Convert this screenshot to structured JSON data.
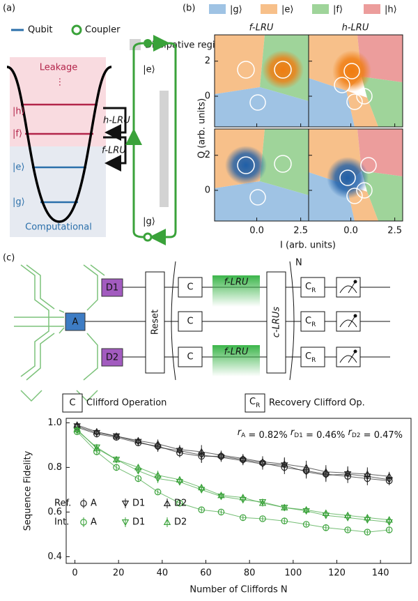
{
  "panel_a": {
    "label": "(a)",
    "legend": {
      "qubit": "Qubit",
      "coupler": "Coupler",
      "dissipative": "Dissipative regime"
    },
    "regions": {
      "leakage": "Leakage",
      "computational": "Computational"
    },
    "levels": [
      "|h⟩",
      "|f⟩",
      "|e⟩",
      "|g⟩"
    ],
    "lru": [
      "h-LRU",
      "f-LRU"
    ],
    "coupler_states": [
      "|e⟩",
      "|g⟩"
    ]
  },
  "panel_b": {
    "label": "(b)",
    "legend": [
      {
        "name": "|g⟩",
        "color": "#9fc3e4"
      },
      {
        "name": "|e⟩",
        "color": "#f7c08a"
      },
      {
        "name": "|f⟩",
        "color": "#9fd49a"
      },
      {
        "name": "|h⟩",
        "color": "#ec9d9c"
      }
    ],
    "titles": [
      "f-LRU",
      "h-LRU"
    ],
    "xlabel": "I (arb. units)",
    "ylabel": "Q (arb. units)",
    "xlim": [
      -2.4,
      2.95
    ],
    "ylim": [
      -1.75,
      3.5
    ],
    "xticks": [
      {
        "value": 0,
        "label": "0.0"
      },
      2.5
    ],
    "yticks": [
      0,
      2
    ]
  },
  "panel_c": {
    "label": "(c)",
    "qubits": [
      "D1",
      "A",
      "D2"
    ],
    "reset": "Reset",
    "clifford": "C",
    "lru": "f-LRU",
    "c_lrus": "c-LRUs",
    "repeat": "N",
    "recovery": {
      "main": "C",
      "sub": "R"
    },
    "legend": {
      "clifford": "Clifford Operation",
      "recovery": "Recovery Clifford Op."
    }
  },
  "chart_data": {
    "type": "line",
    "xlabel": "Number of Cliffords N",
    "ylabel": "Sequence Fidelity",
    "xlim": [
      -4,
      154
    ],
    "ylim": [
      0.37,
      1.02
    ],
    "xticks": [
      0,
      20,
      40,
      60,
      80,
      100,
      120,
      140
    ],
    "yticks": [
      0.4,
      0.6,
      0.8,
      {
        "value": 1,
        "label": "1.0"
      }
    ],
    "groups": [
      "Ref.",
      "Int."
    ],
    "annotations": [
      {
        "symbol": "r",
        "sub": "A",
        "text": " = 0.82%"
      },
      {
        "symbol": "r",
        "sub": "D1",
        "text": " = 0.46%"
      },
      {
        "symbol": "r",
        "sub": "D2",
        "text": " = 0.47%"
      }
    ],
    "x": [
      1,
      10,
      19,
      29,
      38,
      48,
      58,
      67,
      77,
      86,
      96,
      106,
      115,
      125,
      134,
      144
    ],
    "series": [
      {
        "name": "A",
        "group": 0,
        "marker": "circle",
        "color": "#222222",
        "values": [
          0.98,
          0.95,
          0.935,
          0.91,
          0.895,
          0.865,
          0.85,
          0.85,
          0.835,
          0.82,
          0.8,
          0.785,
          0.77,
          0.76,
          0.75,
          0.74
        ],
        "errors": [
          0.01,
          0.015,
          0.015,
          0.015,
          0.02,
          0.02,
          0.03,
          0.02,
          0.02,
          0.025,
          0.03,
          0.03,
          0.03,
          0.03,
          0.03,
          0.02
        ]
      },
      {
        "name": "D1",
        "group": 0,
        "marker": "triangle_down",
        "color": "#222222",
        "values": [
          0.985,
          0.955,
          0.94,
          0.915,
          0.89,
          0.875,
          0.855,
          0.845,
          0.83,
          0.815,
          0.81,
          0.78,
          0.765,
          0.77,
          0.76,
          0.745
        ],
        "errors": [
          0.01,
          0.015,
          0.015,
          0.015,
          0.02,
          0.02,
          0.03,
          0.02,
          0.02,
          0.025,
          0.03,
          0.03,
          0.03,
          0.03,
          0.03,
          0.02
        ]
      },
      {
        "name": "D2",
        "group": 0,
        "marker": "triangle_up",
        "color": "#222222",
        "values": [
          0.99,
          0.96,
          0.94,
          0.92,
          0.905,
          0.88,
          0.87,
          0.855,
          0.84,
          0.825,
          0.815,
          0.8,
          0.78,
          0.775,
          0.77,
          0.76
        ],
        "errors": [
          0.01,
          0.015,
          0.015,
          0.015,
          0.02,
          0.02,
          0.03,
          0.02,
          0.02,
          0.025,
          0.03,
          0.03,
          0.03,
          0.03,
          0.03,
          0.02
        ]
      },
      {
        "name": "A",
        "group": 1,
        "marker": "circle",
        "color": "#3aa23a",
        "values": [
          0.96,
          0.87,
          0.8,
          0.75,
          0.69,
          0.64,
          0.61,
          0.6,
          0.575,
          0.57,
          0.56,
          0.545,
          0.53,
          0.52,
          0.51,
          0.52
        ],
        "errors": [
          0.01,
          0.015,
          0.015,
          0.015,
          0.01,
          0.015,
          0.01,
          0.01,
          0.01,
          0.01,
          0.015,
          0.01,
          0.015,
          0.01,
          0.01,
          0.015
        ]
      },
      {
        "name": "D1",
        "group": 1,
        "marker": "triangle_down",
        "color": "#3aa23a",
        "values": [
          0.965,
          0.89,
          0.835,
          0.785,
          0.75,
          0.735,
          0.7,
          0.67,
          0.655,
          0.645,
          0.62,
          0.605,
          0.585,
          0.575,
          0.565,
          0.555
        ],
        "errors": [
          0.01,
          0.015,
          0.015,
          0.015,
          0.02,
          0.015,
          0.015,
          0.015,
          0.015,
          0.015,
          0.015,
          0.015,
          0.015,
          0.015,
          0.015,
          0.015
        ]
      },
      {
        "name": "D2",
        "group": 1,
        "marker": "triangle_up",
        "color": "#3aa23a",
        "values": [
          0.97,
          0.885,
          0.835,
          0.8,
          0.765,
          0.745,
          0.71,
          0.675,
          0.665,
          0.64,
          0.62,
          0.61,
          0.595,
          0.585,
          0.575,
          0.565
        ],
        "errors": [
          0.01,
          0.015,
          0.015,
          0.015,
          0.02,
          0.015,
          0.015,
          0.015,
          0.015,
          0.015,
          0.015,
          0.015,
          0.015,
          0.015,
          0.015,
          0.015
        ]
      }
    ]
  }
}
